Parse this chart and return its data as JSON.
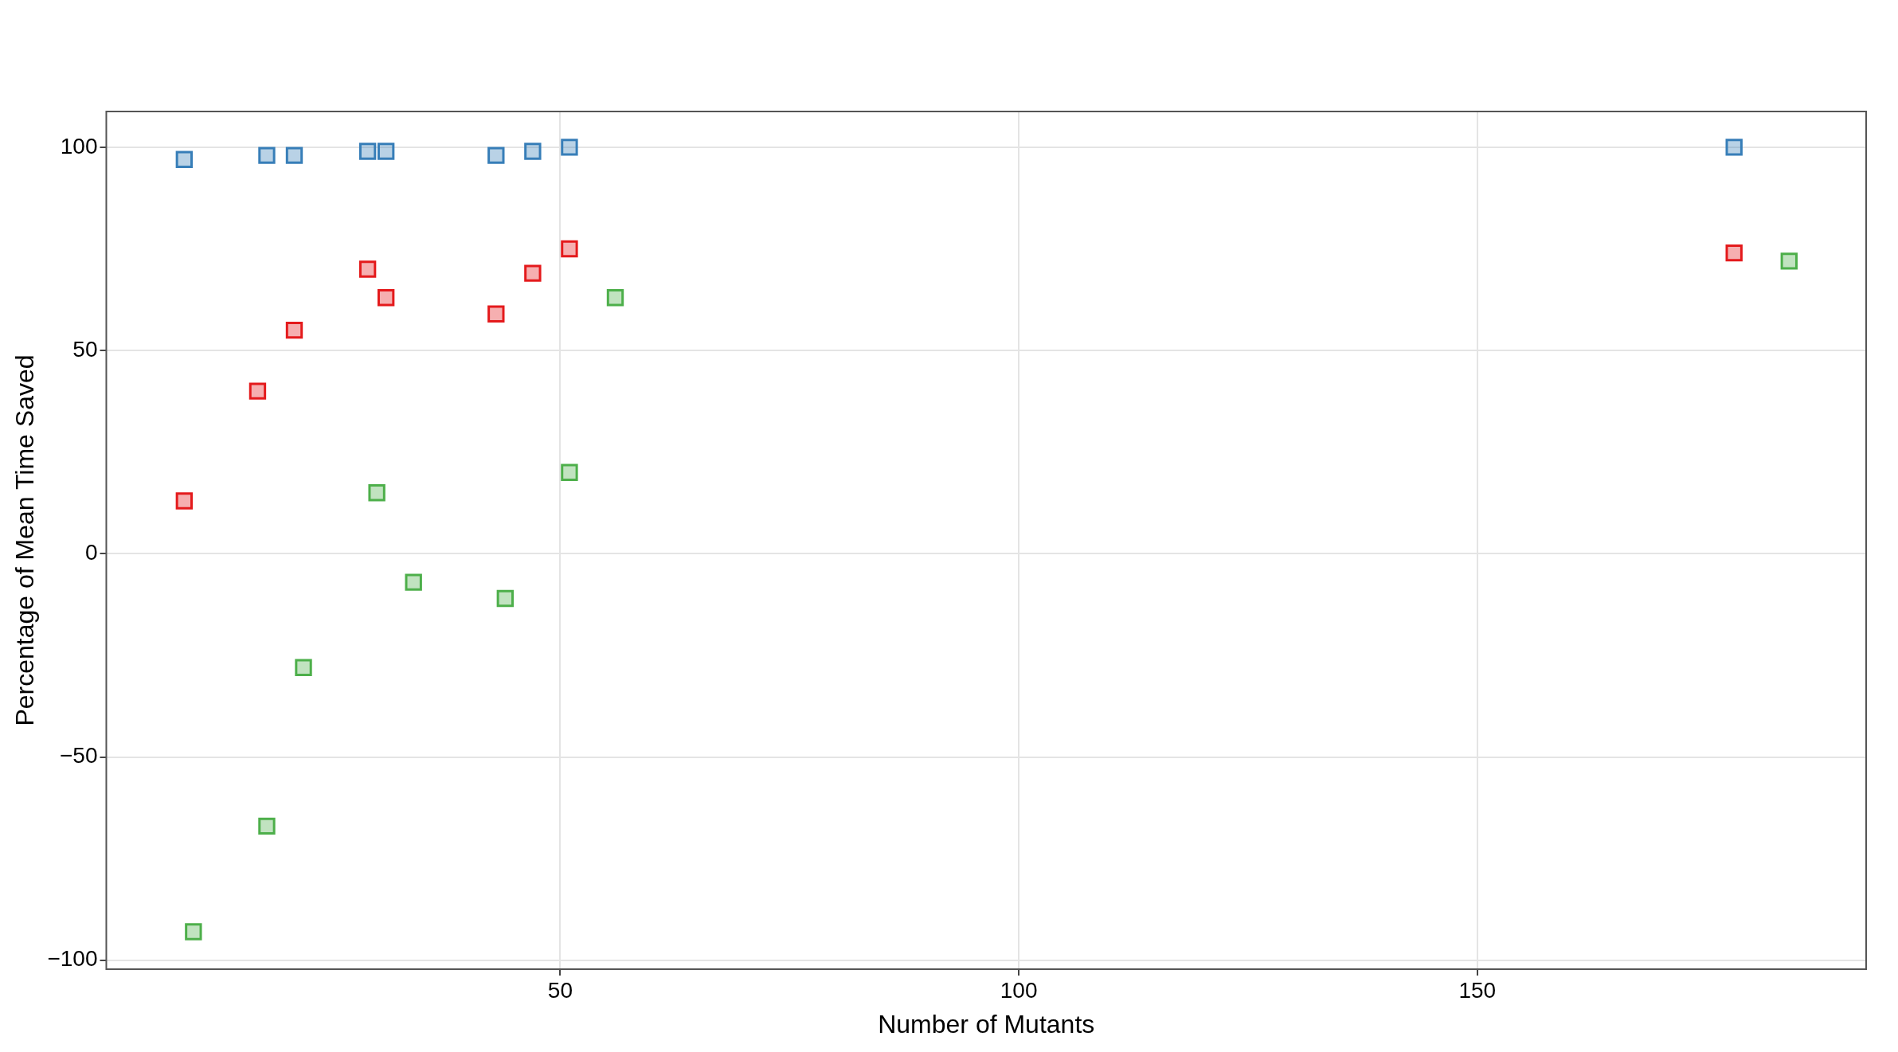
{
  "chart_data": {
    "type": "scatter",
    "xlabel": "Number of Mutants",
    "ylabel": "Percentage of Mean Time Saved",
    "xlim": [
      0.5,
      192.4
    ],
    "ylim": [
      -102.2,
      108.8
    ],
    "xticks": [
      50,
      100,
      150
    ],
    "yticks": [
      -100,
      -50,
      0,
      50,
      100
    ],
    "grid": true,
    "marker": "square",
    "legend": false,
    "series": [
      {
        "color": "#e41a1c",
        "x": [
          9,
          17,
          21,
          29,
          31,
          43,
          47,
          51,
          178
        ],
        "values": [
          13,
          40,
          55,
          70,
          63,
          59,
          69,
          75,
          74
        ]
      },
      {
        "color": "#377eb8",
        "x": [
          9,
          18,
          21,
          29,
          31,
          43,
          47,
          51,
          178
        ],
        "values": [
          97,
          98,
          98,
          99,
          99,
          98,
          99,
          100,
          100
        ]
      },
      {
        "color": "#4daf4a",
        "x": [
          10,
          18,
          22,
          30,
          34,
          44,
          51,
          56,
          184
        ],
        "values": [
          -93,
          -67,
          -28,
          15,
          -7,
          -11,
          20,
          63,
          72
        ]
      }
    ]
  }
}
